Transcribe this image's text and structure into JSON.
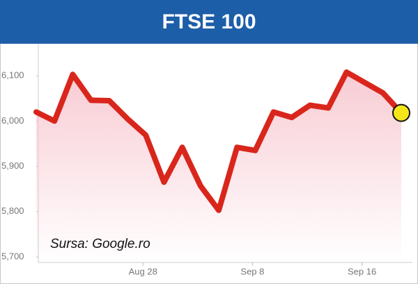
{
  "chart_data": {
    "type": "line",
    "title": "FTSE 100",
    "annotation": "Sursa: Google.ro",
    "categories": [
      null,
      null,
      null,
      null,
      null,
      null,
      "Aug 28",
      null,
      null,
      null,
      null,
      null,
      "Sep 8",
      null,
      null,
      null,
      null,
      null,
      "Sep 16",
      null,
      null
    ],
    "series": [
      {
        "name": "FTSE 100",
        "color": "#d9261c",
        "fill": "#f7c6cf",
        "marker_color": "#f5e61a",
        "values": [
          6020,
          6000,
          6103,
          6046,
          6045,
          6005,
          5969,
          5865,
          5942,
          5857,
          5803,
          5942,
          5935,
          6020,
          6008,
          6035,
          6029,
          6108,
          6085,
          6062,
          6018
        ]
      }
    ],
    "ylim": [
      5700,
      6160
    ],
    "yticks": [
      {
        "value": 5700,
        "label": "5,700"
      },
      {
        "value": 5800,
        "label": "5,800"
      },
      {
        "value": 5900,
        "label": "5,900"
      },
      {
        "value": 6000,
        "label": "6,000"
      },
      {
        "value": 6100,
        "label": "6,100"
      }
    ]
  }
}
